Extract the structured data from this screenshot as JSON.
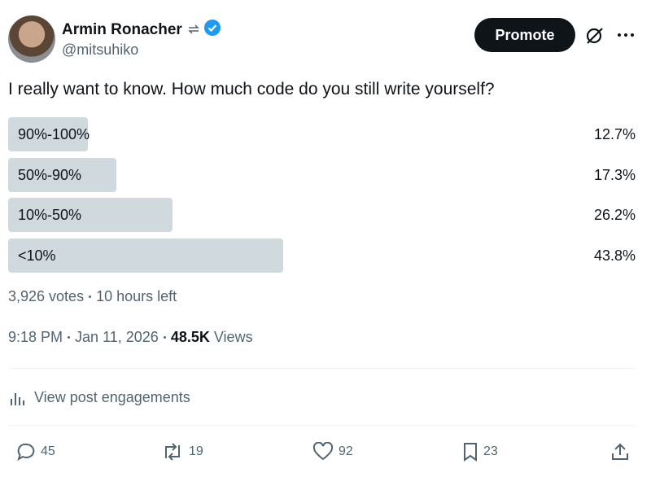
{
  "author": {
    "name": "Armin Ronacher",
    "handle": "@mitsuhiko"
  },
  "button": "Promote",
  "text": "I really want to know. How much code do you still write yourself?",
  "poll": {
    "options": [
      {
        "label": "90%-100%",
        "value": 12.7,
        "value_label": "12.7%"
      },
      {
        "label": "50%-90%",
        "value": 17.3,
        "value_label": "17.3%"
      },
      {
        "label": "10%-50%",
        "value": 26.2,
        "value_label": "26.2%"
      },
      {
        "label": "<10%",
        "value": 43.8,
        "value_label": "43.8%"
      }
    ],
    "votes": "3,926 votes",
    "time_left": "10 hours left"
  },
  "timestamp": {
    "time": "9:18 PM",
    "date": "Jan 11, 2026",
    "views": "48.5K",
    "views_label": "Views"
  },
  "engagements": "View post engagements",
  "actions": {
    "replies": 45,
    "reposts": 19,
    "likes": 92,
    "bookmarks": 23
  }
}
